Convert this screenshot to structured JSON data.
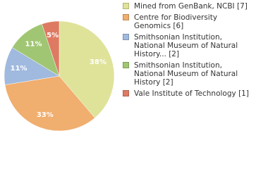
{
  "chart_data": {
    "type": "pie",
    "categories": [
      "Mined from GenBank, NCBI [7]",
      "Centre for Biodiversity Genomics [6]",
      "Smithsonian Institution, National Museum of Natural History... [2]",
      "Smithsonian Institution, National Museum of Natural History [2]",
      "Vale Institute of Technology [1]"
    ],
    "values": [
      38,
      33,
      11,
      11,
      5
    ],
    "value_labels": [
      "38%",
      "33%",
      "11%",
      "11%",
      "5%"
    ],
    "colors": [
      "#dfe39a",
      "#f0ae6f",
      "#a0b9df",
      "#a0c673",
      "#de7a62"
    ]
  }
}
